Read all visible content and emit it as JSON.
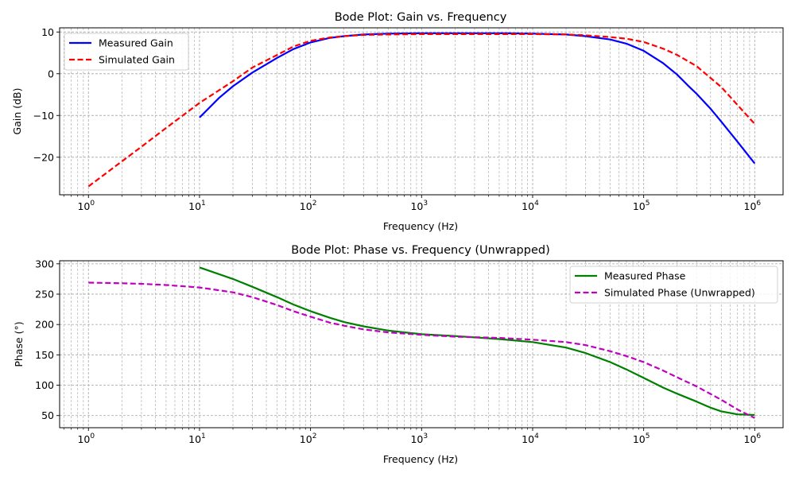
{
  "chart_data": [
    {
      "type": "line",
      "title": "Bode Plot: Gain vs. Frequency",
      "xlabel": "Frequency (Hz)",
      "ylabel": "Gain (dB)",
      "xscale": "log",
      "xlim": [
        0.55,
        1800000
      ],
      "ylim": [
        -29,
        11
      ],
      "x_tick_values": [
        1,
        10,
        100,
        1000,
        10000,
        100000,
        1000000
      ],
      "y_ticks": [
        10,
        0,
        -10,
        -20
      ],
      "y_tick_labels": [
        "10",
        "0",
        "−10",
        "−20"
      ],
      "grid": true,
      "legend_position": "top-left",
      "series": [
        {
          "name": "Measured Gain",
          "color": "#0000ff",
          "style": "solid",
          "x": [
            10,
            15,
            20,
            30,
            50,
            70,
            100,
            150,
            200,
            300,
            500,
            1000,
            2000,
            5000,
            10000,
            20000,
            30000,
            50000,
            70000,
            100000,
            150000,
            200000,
            250000,
            300000,
            400000,
            500000,
            700000,
            1000000
          ],
          "y": [
            -10.5,
            -5.8,
            -3.0,
            0.3,
            3.8,
            5.9,
            7.5,
            8.6,
            9.0,
            9.4,
            9.6,
            9.7,
            9.7,
            9.7,
            9.6,
            9.4,
            9.0,
            8.2,
            7.2,
            5.5,
            2.5,
            -0.2,
            -2.8,
            -4.8,
            -8.4,
            -11.5,
            -16.3,
            -21.5
          ]
        },
        {
          "name": "Simulated Gain",
          "color": "#ff0000",
          "style": "dashed",
          "x": [
            1,
            2,
            3,
            5,
            10,
            20,
            30,
            50,
            70,
            100,
            150,
            200,
            300,
            500,
            1000,
            5000,
            10000,
            20000,
            30000,
            50000,
            70000,
            100000,
            150000,
            200000,
            300000,
            500000,
            700000,
            1000000
          ],
          "y": [
            -27.0,
            -21.0,
            -17.5,
            -13.0,
            -7.0,
            -1.8,
            1.5,
            4.5,
            6.5,
            7.9,
            8.7,
            9.0,
            9.3,
            9.4,
            9.5,
            9.5,
            9.5,
            9.4,
            9.2,
            8.8,
            8.4,
            7.6,
            6.0,
            4.5,
            1.8,
            -3.2,
            -7.5,
            -12.0
          ]
        }
      ]
    },
    {
      "type": "line",
      "title": "Bode Plot: Phase vs. Frequency (Unwrapped)",
      "xlabel": "Frequency (Hz)",
      "ylabel": "Phase (°)",
      "xscale": "log",
      "xlim": [
        0.55,
        1800000
      ],
      "ylim": [
        30,
        305
      ],
      "x_tick_values": [
        1,
        10,
        100,
        1000,
        10000,
        100000,
        1000000
      ],
      "y_ticks": [
        300,
        250,
        200,
        150,
        100,
        50
      ],
      "y_tick_labels": [
        "300",
        "250",
        "200",
        "150",
        "100",
        "50"
      ],
      "grid": true,
      "legend_position": "top-right",
      "series": [
        {
          "name": "Measured Phase",
          "color": "#008000",
          "style": "solid",
          "x": [
            10,
            20,
            30,
            50,
            70,
            100,
            150,
            200,
            300,
            500,
            1000,
            2000,
            5000,
            10000,
            20000,
            30000,
            50000,
            70000,
            100000,
            150000,
            200000,
            300000,
            400000,
            500000,
            700000,
            1000000
          ],
          "y": [
            294,
            275,
            262,
            245,
            233,
            222,
            211,
            204,
            197,
            190,
            184,
            181,
            176,
            171,
            162,
            153,
            138,
            126,
            112,
            96,
            86,
            73,
            63,
            57,
            52,
            51
          ]
        },
        {
          "name": "Simulated Phase (Unwrapped)",
          "color": "#bf00bf",
          "style": "dashed",
          "x": [
            1,
            2,
            3,
            5,
            10,
            20,
            30,
            50,
            70,
            100,
            150,
            200,
            300,
            500,
            1000,
            2000,
            5000,
            10000,
            20000,
            30000,
            50000,
            70000,
            100000,
            150000,
            200000,
            300000,
            500000,
            700000,
            1000000
          ],
          "y": [
            269,
            268,
            267,
            265,
            261,
            253,
            245,
            232,
            222,
            213,
            203,
            198,
            192,
            187,
            183,
            180,
            178,
            175,
            171,
            166,
            156,
            148,
            138,
            124,
            113,
            98,
            76,
            60,
            46
          ]
        }
      ]
    }
  ]
}
